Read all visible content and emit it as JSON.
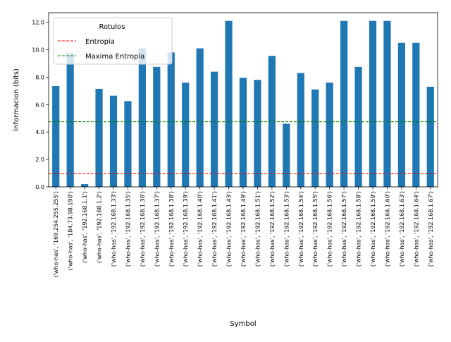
{
  "chart_data": {
    "type": "bar",
    "xlabel": "Symbol",
    "ylabel": "Informacion (bits)",
    "ylim": [
      0,
      12.7
    ],
    "yticks": [
      "0.0",
      "2.0",
      "4.0",
      "6.0",
      "8.0",
      "10.0",
      "12.0"
    ],
    "ytick_values": [
      0,
      2,
      4,
      6,
      8,
      10,
      12
    ],
    "categories": [
      "('who-has', '169.254.255.255')",
      "('who-has', '184.73.98.190')",
      "('who-has', '192.168.1.1')",
      "('who-has', '192.168.1.2')",
      "('who-has', '192.168.1.33')",
      "('who-has', '192.168.1.35')",
      "('who-has', '192.168.1.36')",
      "('who-has', '192.168.1.37')",
      "('who-has', '192.168.1.38')",
      "('who-has', '192.168.1.39')",
      "('who-has', '192.168.1.40')",
      "('who-has', '192.168.1.41')",
      "('who-has', '192.168.1.43')",
      "('who-has', '192.168.1.49')",
      "('who-has', '192.168.1.51')",
      "('who-has', '192.168.1.52')",
      "('who-has', '192.168.1.53')",
      "('who-has', '192.168.1.54')",
      "('who-has', '192.168.1.55')",
      "('who-has', '192.168.1.56')",
      "('who-has', '192.168.1.57')",
      "('who-has', '192.168.1.58')",
      "('who-has', '192.168.1.59')",
      "('who-has', '192.168.1.60')",
      "('who-has', '192.168.1.63')",
      "('who-has', '192.168.1.64')",
      "('who-has', '192.168.1.67')"
    ],
    "values": [
      7.35,
      9.75,
      0.2,
      7.15,
      6.65,
      6.25,
      10.1,
      8.75,
      9.8,
      7.6,
      10.1,
      8.4,
      12.1,
      7.95,
      7.8,
      9.55,
      4.6,
      8.3,
      7.1,
      7.6,
      12.1,
      8.75,
      12.1,
      12.1,
      10.5,
      10.5,
      7.3
    ],
    "bar_color": "#1f77b4",
    "reference_lines": [
      {
        "name": "Entropia",
        "value": 0.95,
        "color": "#ff0000",
        "style": "dashed"
      },
      {
        "name": "Maxima Entropia",
        "value": 4.75,
        "color": "#008000",
        "style": "dashed"
      }
    ],
    "legend": {
      "title": "Rotulos",
      "placement": "top-left"
    },
    "grid": false
  }
}
